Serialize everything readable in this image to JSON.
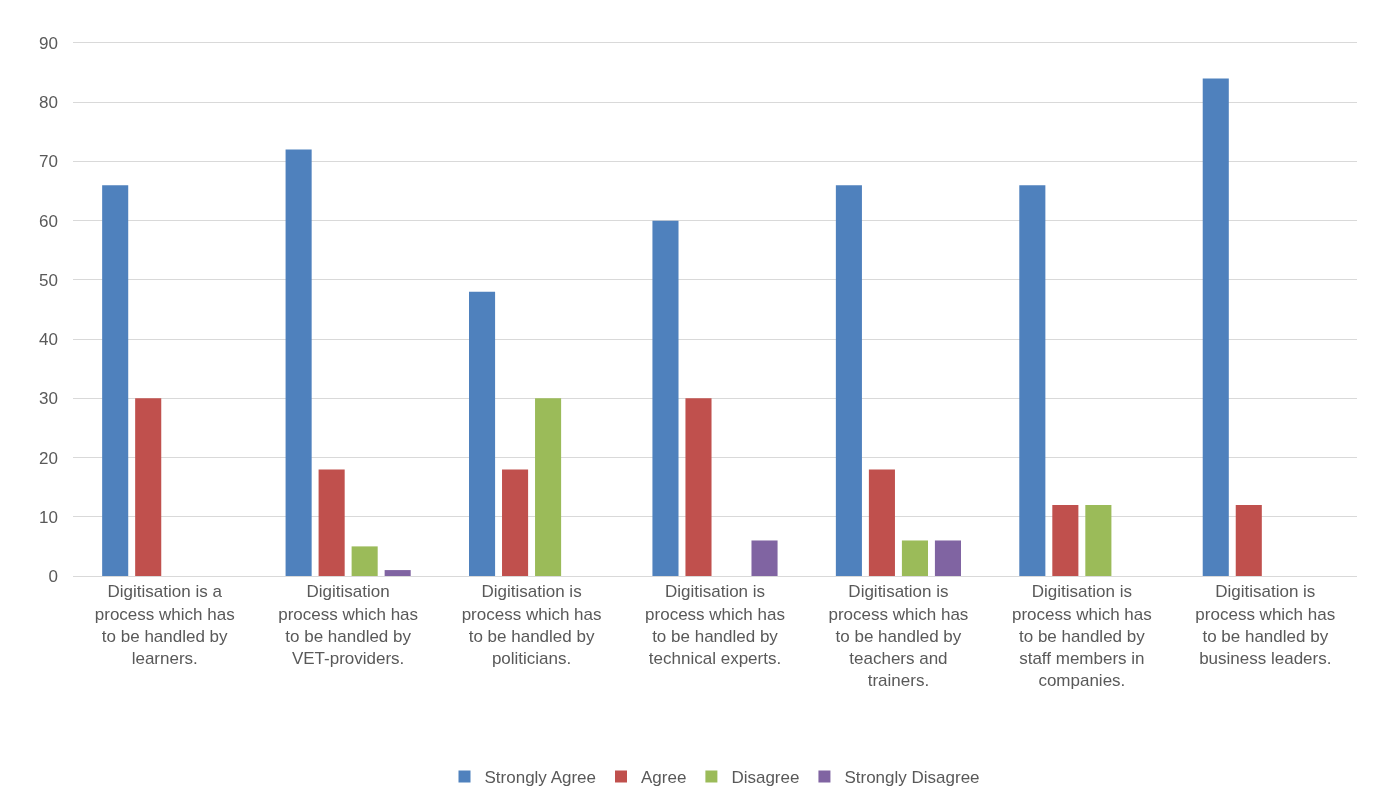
{
  "chart_data": {
    "type": "bar",
    "categories": [
      "Digitisation is a process which has to be handled by learners.",
      "Digitisation process which has to be handled by VET-providers.",
      "Digitisation is process which has to be handled by politicians.",
      "Digitisation is process which has to be handled by technical experts.",
      "Digitisation is process which has to be handled by teachers and trainers.",
      "Digitisation is process which has to be handled by staff members in companies.",
      "Digitisation is process which has to be handled by business leaders."
    ],
    "series": [
      {
        "name": "Strongly Agree",
        "color": "#4f81bd",
        "values": [
          66,
          72,
          48,
          60,
          66,
          66,
          84
        ]
      },
      {
        "name": "Agree",
        "color": "#c0504d",
        "values": [
          30,
          18,
          18,
          30,
          18,
          12,
          12
        ]
      },
      {
        "name": "Disagree",
        "color": "#9bbb59",
        "values": [
          null,
          5,
          30,
          null,
          6,
          12,
          null
        ]
      },
      {
        "name": "Strongly Disagree",
        "color": "#8064a2",
        "values": [
          null,
          1,
          null,
          6,
          6,
          null,
          null
        ]
      }
    ],
    "ylim": [
      0,
      90
    ],
    "yticks": [
      0,
      10,
      20,
      30,
      40,
      50,
      60,
      70,
      80,
      90
    ],
    "grid": "y",
    "legend": "bottom"
  }
}
